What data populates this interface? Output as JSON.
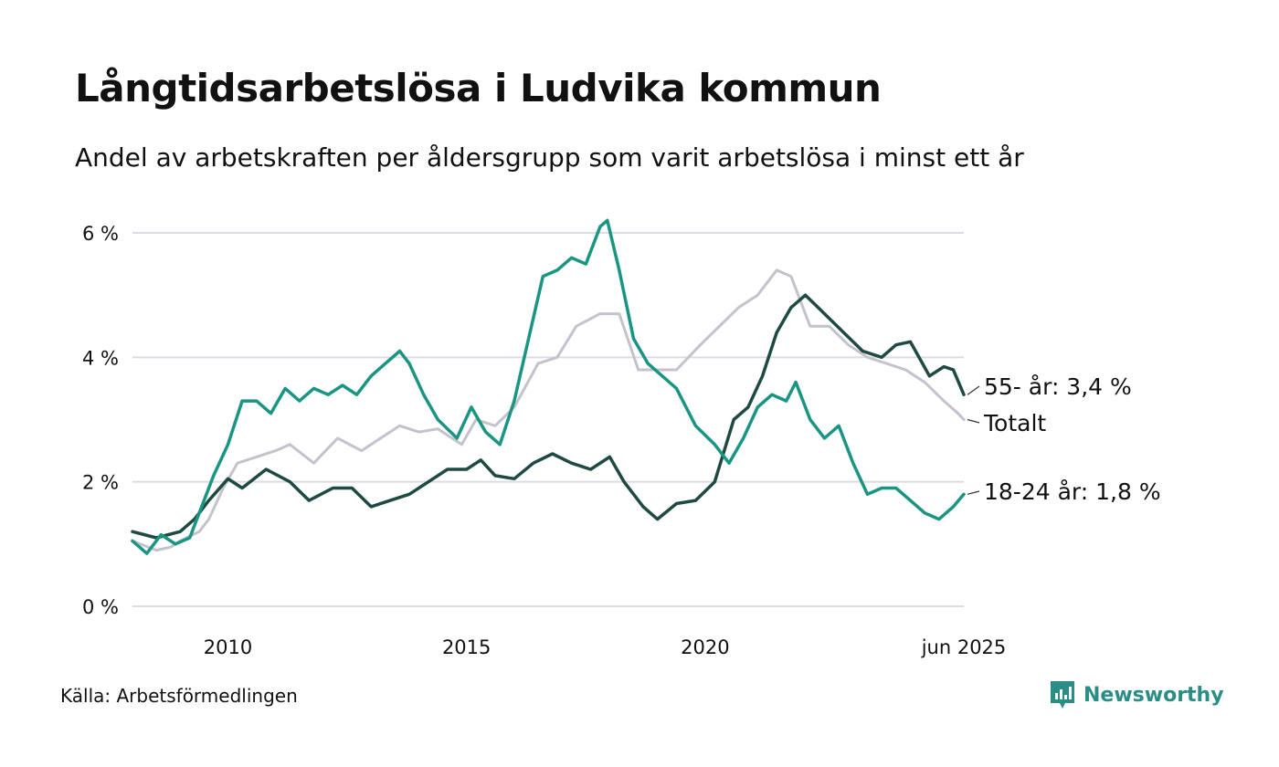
{
  "header": {
    "title": "Långtidsarbetslösa i Ludvika kommun",
    "subtitle": "Andel av arbetskraften per åldersgrupp som varit arbetslösa i minst ett år"
  },
  "footer": {
    "source": "Källa: Arbetsförmedlingen",
    "brand": "Newsworthy"
  },
  "colors": {
    "age_55_plus": "#1f4a43",
    "total": "#c4c2cc",
    "age_18_24": "#1a9583",
    "grid": "#dcdce2",
    "brand": "#2a8e86"
  },
  "chart_data": {
    "type": "line",
    "title": "Långtidsarbetslösa i Ludvika kommun",
    "subtitle": "Andel av arbetskraften per åldersgrupp som varit arbetslösa i minst ett år",
    "x_range": [
      2008.0,
      2025.42
    ],
    "ylim": [
      0,
      6.3
    ],
    "y_ticks": [
      0,
      2,
      4,
      6
    ],
    "y_tick_labels": [
      "0 %",
      "2 %",
      "4 %",
      "6 %"
    ],
    "x_ticks": [
      2010,
      2015,
      2020,
      2025.42
    ],
    "x_tick_labels": [
      "2010",
      "2015",
      "2020",
      "jun 2025"
    ],
    "grid": "horizontal",
    "legend": "inline labels at line ends",
    "series": [
      {
        "key": "total",
        "name": "Totalt",
        "end_label": "Totalt",
        "x": [
          2008.0,
          2008.5,
          2008.8,
          2009.0,
          2009.4,
          2009.6,
          2009.9,
          2010.2,
          2010.6,
          2011.0,
          2011.3,
          2011.8,
          2012.3,
          2012.8,
          2013.2,
          2013.6,
          2014.0,
          2014.4,
          2014.9,
          2015.2,
          2015.6,
          2016.0,
          2016.5,
          2016.9,
          2017.3,
          2017.8,
          2018.2,
          2018.6,
          2019.0,
          2019.4,
          2019.9,
          2020.3,
          2020.7,
          2021.1,
          2021.5,
          2021.8,
          2022.2,
          2022.6,
          2023.0,
          2023.4,
          2023.8,
          2024.2,
          2024.6,
          2025.0,
          2025.3,
          2025.42
        ],
        "values": [
          1.05,
          0.9,
          0.95,
          1.05,
          1.2,
          1.4,
          1.9,
          2.3,
          2.4,
          2.5,
          2.6,
          2.3,
          2.7,
          2.5,
          2.7,
          2.9,
          2.8,
          2.85,
          2.6,
          3.0,
          2.9,
          3.2,
          3.9,
          4.0,
          4.5,
          4.7,
          4.7,
          3.8,
          3.8,
          3.8,
          4.2,
          4.5,
          4.8,
          5.0,
          5.4,
          5.3,
          4.5,
          4.5,
          4.2,
          4.0,
          3.9,
          3.8,
          3.6,
          3.3,
          3.1,
          3.0
        ]
      },
      {
        "key": "age_55_plus",
        "name": "55- år",
        "end_label": "55- år: 3,4 %",
        "x": [
          2008.0,
          2008.5,
          2009.0,
          2009.3,
          2009.6,
          2010.0,
          2010.3,
          2010.8,
          2011.3,
          2011.7,
          2012.2,
          2012.6,
          2013.0,
          2013.4,
          2013.8,
          2014.2,
          2014.6,
          2015.0,
          2015.3,
          2015.6,
          2016.0,
          2016.4,
          2016.8,
          2017.2,
          2017.6,
          2018.0,
          2018.3,
          2018.7,
          2019.0,
          2019.4,
          2019.8,
          2020.2,
          2020.6,
          2020.9,
          2021.2,
          2021.5,
          2021.8,
          2022.1,
          2022.5,
          2022.9,
          2023.3,
          2023.7,
          2024.0,
          2024.3,
          2024.7,
          2025.0,
          2025.2,
          2025.42
        ],
        "values": [
          1.2,
          1.1,
          1.2,
          1.4,
          1.7,
          2.05,
          1.9,
          2.2,
          2.0,
          1.7,
          1.9,
          1.9,
          1.6,
          1.7,
          1.8,
          2.0,
          2.2,
          2.2,
          2.35,
          2.1,
          2.05,
          2.3,
          2.45,
          2.3,
          2.2,
          2.4,
          2.0,
          1.6,
          1.4,
          1.65,
          1.7,
          2.0,
          3.0,
          3.2,
          3.7,
          4.4,
          4.8,
          5.0,
          4.7,
          4.4,
          4.1,
          4.0,
          4.2,
          4.25,
          3.7,
          3.85,
          3.8,
          3.4
        ]
      },
      {
        "key": "age_18_24",
        "name": "18-24 år",
        "end_label": "18-24 år: 1,8 %",
        "x": [
          2008.0,
          2008.3,
          2008.6,
          2008.9,
          2009.2,
          2009.4,
          2009.7,
          2010.0,
          2010.3,
          2010.6,
          2010.9,
          2011.2,
          2011.5,
          2011.8,
          2012.1,
          2012.4,
          2012.7,
          2013.0,
          2013.3,
          2013.6,
          2013.8,
          2014.1,
          2014.4,
          2014.8,
          2015.1,
          2015.4,
          2015.7,
          2016.0,
          2016.3,
          2016.6,
          2016.9,
          2017.2,
          2017.5,
          2017.8,
          2017.95,
          2018.2,
          2018.5,
          2018.8,
          2019.1,
          2019.4,
          2019.8,
          2020.2,
          2020.5,
          2020.8,
          2021.1,
          2021.4,
          2021.7,
          2021.9,
          2022.2,
          2022.5,
          2022.8,
          2023.1,
          2023.4,
          2023.7,
          2024.0,
          2024.3,
          2024.6,
          2024.9,
          2025.2,
          2025.42
        ],
        "values": [
          1.05,
          0.85,
          1.15,
          1.0,
          1.1,
          1.5,
          2.1,
          2.6,
          3.3,
          3.3,
          3.1,
          3.5,
          3.3,
          3.5,
          3.4,
          3.55,
          3.4,
          3.7,
          3.9,
          4.1,
          3.9,
          3.4,
          3.0,
          2.7,
          3.2,
          2.8,
          2.6,
          3.3,
          4.3,
          5.3,
          5.4,
          5.6,
          5.5,
          6.1,
          6.2,
          5.4,
          4.3,
          3.9,
          3.7,
          3.5,
          2.9,
          2.6,
          2.3,
          2.7,
          3.2,
          3.4,
          3.3,
          3.6,
          3.0,
          2.7,
          2.9,
          2.3,
          1.8,
          1.9,
          1.9,
          1.7,
          1.5,
          1.4,
          1.6,
          1.8
        ]
      }
    ]
  }
}
